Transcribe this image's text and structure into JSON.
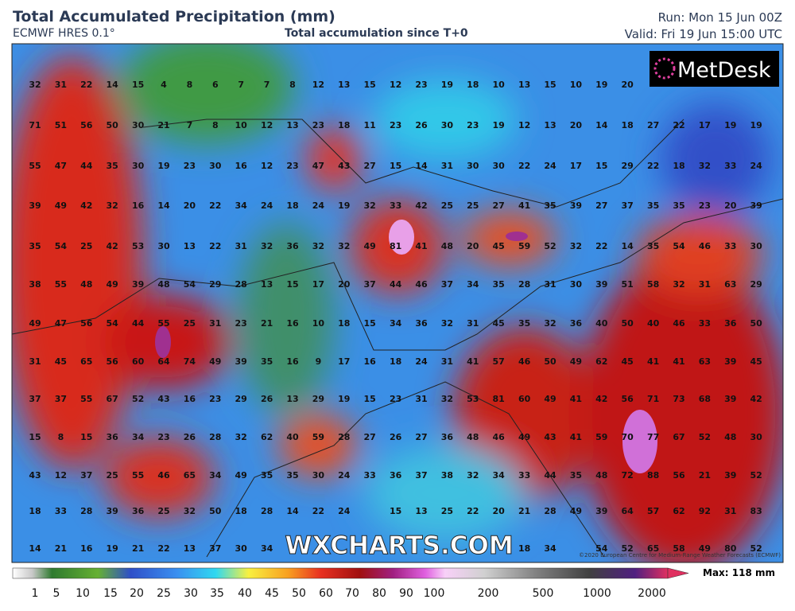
{
  "header": {
    "title": "Total Accumulated Precipitation (mm)",
    "model": "ECMWF HRES 0.1°",
    "subtitle": "Total accumulation since T+0",
    "run": "Run: Mon 15 Jun 00Z",
    "valid": "Valid: Fri 19 Jun 15:00 UTC"
  },
  "logo": "MetDesk",
  "watermark": "WXCHARTS.COM",
  "copyright": "©2020 European Centre for Medium-Range Weather Forecasts (ECMWF)",
  "map": {
    "rows": [
      [
        32,
        31,
        22,
        14,
        15,
        4,
        8,
        6,
        7,
        7,
        8,
        12,
        13,
        15,
        12,
        23,
        19,
        18,
        10,
        13,
        15,
        10,
        19,
        20,
        null,
        null,
        null,
        null,
        null
      ],
      [
        71,
        51,
        56,
        50,
        30,
        21,
        7,
        8,
        10,
        12,
        13,
        23,
        18,
        11,
        23,
        26,
        30,
        23,
        19,
        12,
        13,
        20,
        14,
        18,
        27,
        22,
        17,
        19,
        19
      ],
      [
        55,
        47,
        44,
        35,
        30,
        19,
        23,
        30,
        16,
        12,
        23,
        47,
        43,
        27,
        15,
        14,
        31,
        30,
        30,
        22,
        24,
        17,
        15,
        29,
        22,
        18,
        32,
        33,
        24
      ],
      [
        39,
        49,
        42,
        32,
        16,
        14,
        20,
        22,
        34,
        24,
        18,
        24,
        19,
        32,
        33,
        42,
        25,
        25,
        27,
        41,
        35,
        39,
        27,
        37,
        35,
        35,
        23,
        20,
        39
      ],
      [
        35,
        54,
        25,
        42,
        53,
        30,
        13,
        22,
        31,
        32,
        36,
        32,
        32,
        49,
        81,
        41,
        48,
        20,
        45,
        59,
        52,
        32,
        22,
        14,
        35,
        54,
        46,
        33,
        30
      ],
      [
        38,
        55,
        48,
        49,
        39,
        48,
        54,
        29,
        28,
        13,
        15,
        17,
        20,
        37,
        44,
        46,
        37,
        34,
        35,
        28,
        31,
        30,
        39,
        51,
        58,
        32,
        31,
        63,
        29
      ],
      [
        49,
        47,
        56,
        54,
        44,
        55,
        25,
        31,
        23,
        21,
        16,
        10,
        18,
        15,
        34,
        36,
        32,
        31,
        45,
        35,
        32,
        36,
        40,
        50,
        40,
        46,
        33,
        36,
        50
      ],
      [
        31,
        45,
        65,
        56,
        60,
        64,
        74,
        49,
        39,
        35,
        16,
        9,
        17,
        16,
        18,
        24,
        31,
        41,
        57,
        46,
        50,
        49,
        62,
        45,
        41,
        41,
        63,
        39,
        45
      ],
      [
        37,
        37,
        55,
        67,
        52,
        43,
        16,
        23,
        29,
        26,
        13,
        29,
        19,
        15,
        23,
        31,
        32,
        53,
        81,
        60,
        49,
        41,
        42,
        56,
        71,
        73,
        68,
        39,
        42
      ],
      [
        15,
        8,
        15,
        36,
        34,
        23,
        26,
        28,
        32,
        62,
        40,
        59,
        28,
        27,
        26,
        27,
        36,
        48,
        46,
        49,
        43,
        41,
        59,
        70,
        77,
        67,
        52,
        48,
        30
      ],
      [
        43,
        12,
        37,
        25,
        55,
        46,
        65,
        34,
        49,
        35,
        35,
        30,
        24,
        33,
        36,
        37,
        38,
        32,
        34,
        33,
        44,
        35,
        48,
        72,
        88,
        56,
        21,
        39,
        52
      ],
      [
        18,
        33,
        28,
        39,
        36,
        25,
        32,
        50,
        18,
        28,
        14,
        22,
        24,
        null,
        15,
        13,
        25,
        22,
        20,
        21,
        28,
        49,
        39,
        64,
        57,
        62,
        92,
        31,
        83
      ],
      [
        14,
        21,
        16,
        19,
        21,
        22,
        13,
        37,
        30,
        34,
        null,
        null,
        null,
        null,
        null,
        null,
        null,
        null,
        null,
        18,
        34,
        null,
        54,
        52,
        65,
        58,
        49,
        80,
        52
      ]
    ]
  },
  "legend": {
    "labels": [
      "1",
      "5",
      "10",
      "15",
      "20",
      "25",
      "30",
      "35",
      "40",
      "45",
      "50",
      "60",
      "70",
      "80",
      "90",
      "100",
      "200",
      "500",
      "1000",
      "2000"
    ],
    "max": "Max: 118 mm"
  }
}
